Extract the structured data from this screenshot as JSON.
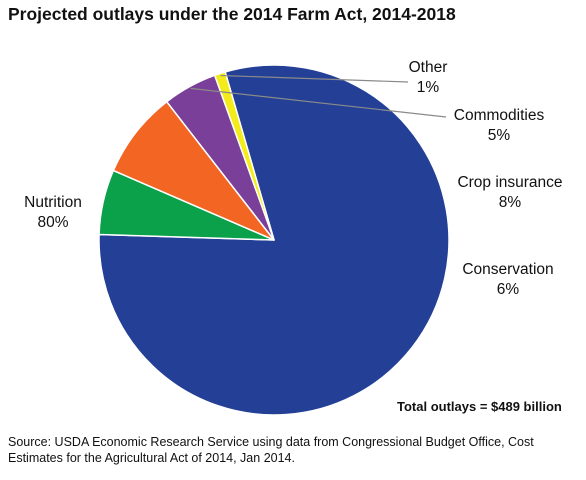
{
  "chart_data": {
    "type": "pie",
    "title": "Projected outlays under the 2014 Farm Act, 2014-2018",
    "slices": [
      {
        "name": "Nutrition",
        "value": 80,
        "value_label": "80%",
        "color": "#233F96"
      },
      {
        "name": "Conservation",
        "value": 6,
        "value_label": "6%",
        "color": "#0AA14A"
      },
      {
        "name": "Crop insurance",
        "value": 8,
        "value_label": "8%",
        "color": "#F26522"
      },
      {
        "name": "Commodities",
        "value": 5,
        "value_label": "5%",
        "color": "#7A3F98"
      },
      {
        "name": "Other",
        "value": 1,
        "value_label": "1%",
        "color": "#F3EC1A"
      }
    ],
    "annotation": "Total outlays = $489 billion"
  },
  "footer": {
    "source": "Source: USDA Economic Research Service using data from Congressional Budget Office, Cost Estimates for the Agricultural Act of 2014, Jan 2014."
  }
}
